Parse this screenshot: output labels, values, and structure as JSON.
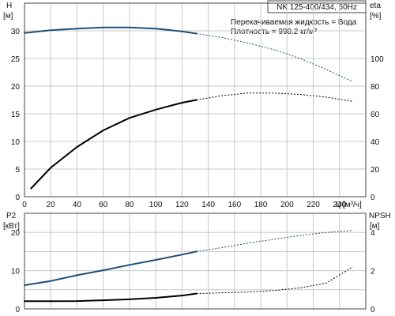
{
  "chart_data": [
    {
      "type": "line",
      "title": "NK 125-400/434, 50Hz",
      "annotations": [
        "Перекачиваемая жидкость = Вода",
        "Плотность = 998.2 кг/м³"
      ],
      "x_label": "Q",
      "x_unit": "[м³/ч]",
      "x_ticks": [
        "0",
        "20",
        "40",
        "60",
        "80",
        "100",
        "120",
        "140",
        "160",
        "180",
        "200",
        "220",
        "240"
      ],
      "xlim": [
        0,
        260
      ],
      "left_axis": {
        "label": "H",
        "unit": "[м]",
        "ylim": [
          0,
          35
        ],
        "ticks": [
          "0",
          "5",
          "10",
          "15",
          "20",
          "25",
          "30"
        ]
      },
      "right_axis": {
        "label": "eta",
        "unit": "[%]",
        "ylim": [
          0,
          140
        ],
        "ticks": [
          "0",
          "20",
          "40",
          "60",
          "80",
          "100"
        ]
      },
      "grid": true,
      "series": [
        {
          "axis": "left",
          "color": "#1f4e79",
          "points": [
            [
              0,
              29.6
            ],
            [
              20,
              30.1
            ],
            [
              40,
              30.4
            ],
            [
              60,
              30.6
            ],
            [
              80,
              30.6
            ],
            [
              100,
              30.4
            ],
            [
              120,
              29.9
            ],
            [
              131,
              29.5
            ]
          ],
          "dashed_points": [
            [
              131,
              29.5
            ],
            [
              150,
              28.8
            ],
            [
              170,
              27.8
            ],
            [
              190,
              26.6
            ],
            [
              210,
              25.0
            ],
            [
              230,
              23.0
            ],
            [
              250,
              20.8
            ]
          ]
        },
        {
          "axis": "right",
          "color": "#000000",
          "points": [
            [
              5,
              6
            ],
            [
              20,
              21
            ],
            [
              40,
              36
            ],
            [
              60,
              48
            ],
            [
              80,
              57
            ],
            [
              100,
              63
            ],
            [
              120,
              68
            ],
            [
              131,
              70
            ]
          ],
          "dashed_points": [
            [
              131,
              70
            ],
            [
              150,
              73
            ],
            [
              170,
              75
            ],
            [
              190,
              75
            ],
            [
              210,
              74
            ],
            [
              230,
              72
            ],
            [
              250,
              69
            ]
          ]
        }
      ]
    },
    {
      "type": "line",
      "x_ticks_shown": false,
      "xlim": [
        0,
        260
      ],
      "left_axis": {
        "label": "P2",
        "unit": "[кВт]",
        "ylim": [
          0,
          25
        ],
        "ticks": [
          "0",
          "10",
          "20"
        ]
      },
      "right_axis": {
        "label": "NPSH",
        "unit": "[м]",
        "ylim": [
          0,
          5
        ],
        "ticks": [
          "0",
          "2",
          "4"
        ]
      },
      "grid": true,
      "series": [
        {
          "axis": "left",
          "color": "#1f4e79",
          "points": [
            [
              0,
              6.2
            ],
            [
              20,
              7.3
            ],
            [
              40,
              8.8
            ],
            [
              60,
              10.1
            ],
            [
              80,
              11.5
            ],
            [
              100,
              12.8
            ],
            [
              120,
              14.2
            ],
            [
              131,
              15.0
            ]
          ],
          "dashed_points": [
            [
              131,
              15.0
            ],
            [
              150,
              16.0
            ],
            [
              170,
              17.2
            ],
            [
              190,
              18.2
            ],
            [
              210,
              19.2
            ],
            [
              230,
              20.0
            ],
            [
              250,
              20.5
            ]
          ]
        },
        {
          "axis": "right",
          "color": "#000000",
          "points": [
            [
              0,
              0.4
            ],
            [
              20,
              0.4
            ],
            [
              40,
              0.41
            ],
            [
              60,
              0.45
            ],
            [
              80,
              0.5
            ],
            [
              100,
              0.58
            ],
            [
              120,
              0.7
            ],
            [
              131,
              0.8
            ]
          ],
          "dashed_points": [
            [
              131,
              0.8
            ],
            [
              150,
              0.84
            ],
            [
              170,
              0.88
            ],
            [
              190,
              0.96
            ],
            [
              210,
              1.1
            ],
            [
              230,
              1.35
            ],
            [
              250,
              2.2
            ]
          ]
        }
      ]
    }
  ]
}
